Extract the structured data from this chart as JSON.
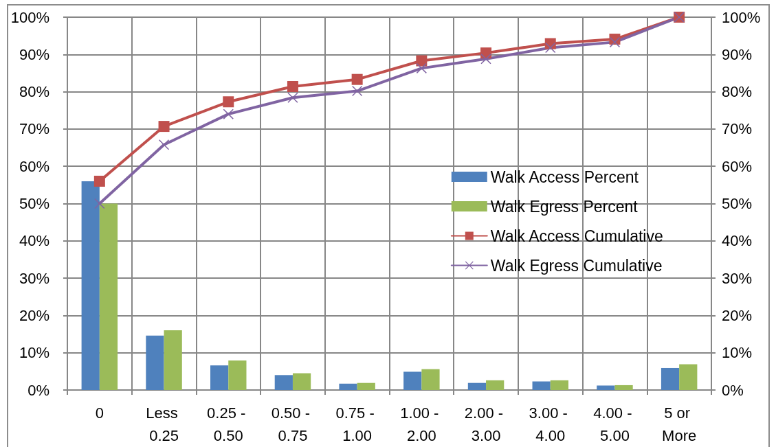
{
  "chart_data": {
    "type": "bar",
    "categories": [
      "0",
      "Less 0.25",
      "0.25 - 0.50",
      "0.50 - 0.75",
      "0.75 - 1.00",
      "1.00 - 2.00",
      "2.00 - 3.00",
      "3.00 - 4.00",
      "4.00 - 5.00",
      "5 or More"
    ],
    "series": [
      {
        "name": "Walk Access Percent",
        "color": "#4f81bd",
        "values": [
          56,
          14.6,
          6.6,
          4.0,
          1.7,
          4.9,
          1.9,
          2.3,
          1.2,
          5.9
        ]
      },
      {
        "name": "Walk Egress Percent",
        "color": "#9bbb59",
        "values": [
          50,
          16.0,
          7.9,
          4.5,
          1.9,
          5.6,
          2.6,
          2.6,
          1.3,
          6.9
        ]
      },
      {
        "name": "Walk Access Cumulative",
        "type": "line",
        "marker": "square",
        "color": "#c0504d",
        "values": [
          56,
          70.7,
          77.3,
          81.4,
          83.3,
          88.3,
          90.4,
          92.9,
          94.1,
          100
        ]
      },
      {
        "name": "Walk Egress Cumulative",
        "type": "line",
        "marker": "cross",
        "color": "#8064a2",
        "values": [
          50,
          65.8,
          74.0,
          78.4,
          80.2,
          86.3,
          88.8,
          91.8,
          93.3,
          100
        ]
      }
    ],
    "ylim": [
      0,
      100
    ],
    "yticks": [
      {
        "value": 0,
        "label": "0%"
      },
      {
        "value": 10,
        "label": "10%"
      },
      {
        "value": 20,
        "label": "20%"
      },
      {
        "value": 30,
        "label": "30%"
      },
      {
        "value": 40,
        "label": "40%"
      },
      {
        "value": 50,
        "label": "50%"
      },
      {
        "value": 60,
        "label": "60%"
      },
      {
        "value": 70,
        "label": "70%"
      },
      {
        "value": 80,
        "label": "80%"
      },
      {
        "value": 90,
        "label": "90%"
      },
      {
        "value": 100,
        "label": "100%"
      }
    ],
    "y2lim": [
      0,
      100
    ],
    "y2ticks": [
      {
        "value": 0,
        "label": "0%"
      },
      {
        "value": 10,
        "label": "10%"
      },
      {
        "value": 20,
        "label": "20%"
      },
      {
        "value": 30,
        "label": "30%"
      },
      {
        "value": 40,
        "label": "40%"
      },
      {
        "value": 50,
        "label": "50%"
      },
      {
        "value": 60,
        "label": "60%"
      },
      {
        "value": 70,
        "label": "70%"
      },
      {
        "value": 80,
        "label": "80%"
      },
      {
        "value": 90,
        "label": "90%"
      },
      {
        "value": 100,
        "label": "100%"
      }
    ],
    "grid": true,
    "legend": "right"
  }
}
